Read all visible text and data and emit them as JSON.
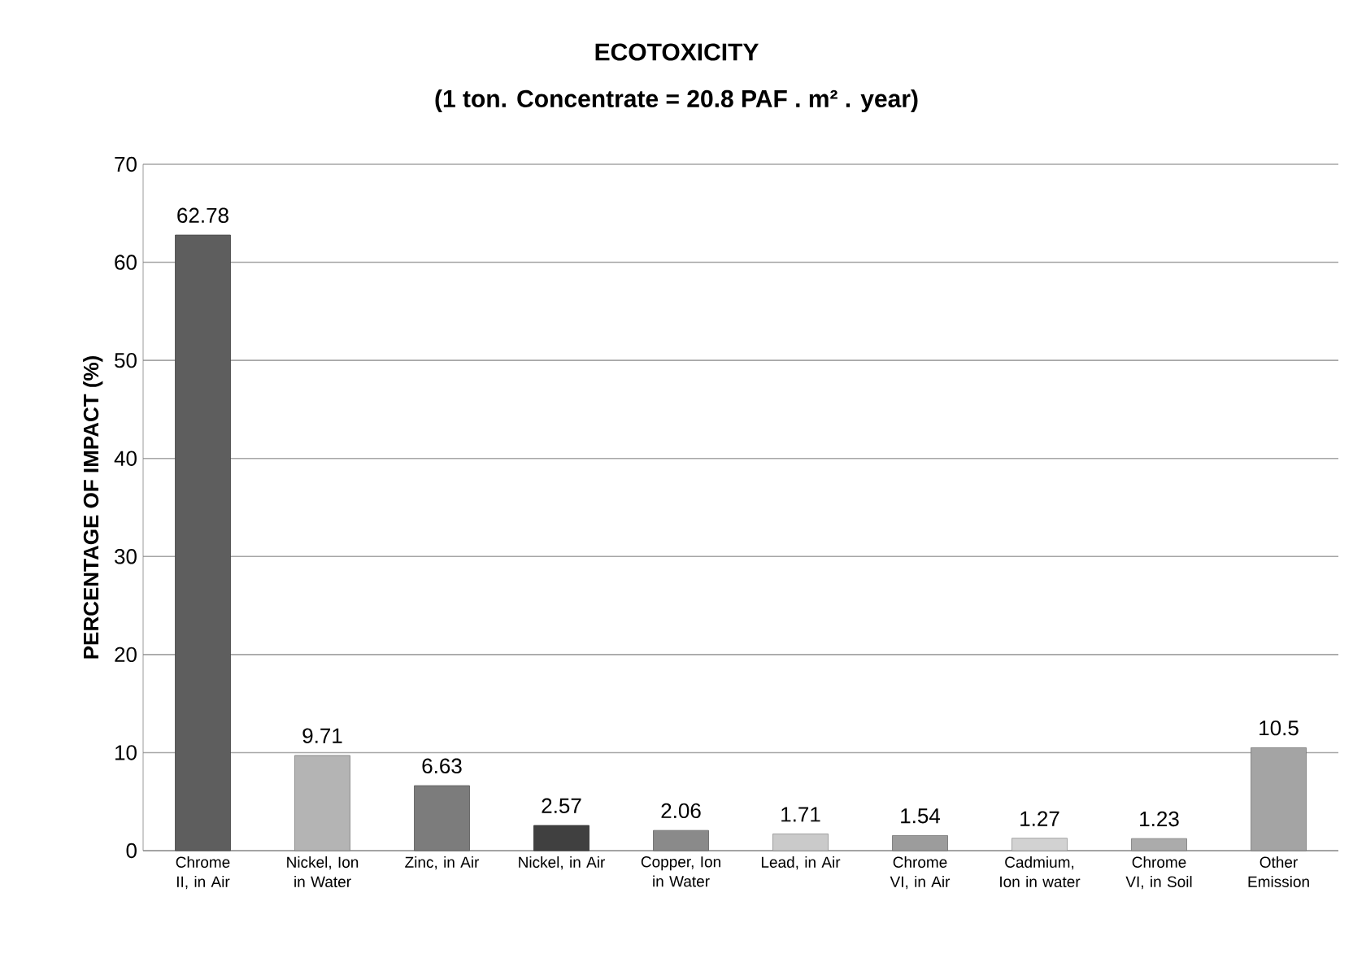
{
  "chart_data": {
    "type": "bar",
    "title": "ECOTOXICITY",
    "subtitle": "(1 ton. Concentrate = 20.8 PAF . m² . year)",
    "ylabel": "PERCENTAGE OF IMPACT (%)",
    "categories": [
      "Chrome II, in Air",
      "Nickel, Ion in Water",
      "Zinc, in Air",
      "Nickel, in Air",
      "Copper, Ion in Water",
      "Lead, in Air",
      "Chrome VI, in Air",
      "Cadmium, Ion in water",
      "Chrome VI, in Soil",
      "Other Emission"
    ],
    "values": [
      62.78,
      9.71,
      6.63,
      2.57,
      2.06,
      1.71,
      1.54,
      1.27,
      1.23,
      10.5
    ],
    "colors": [
      "#5e5e5e",
      "#b4b4b4",
      "#7c7c7c",
      "#404040",
      "#8a8a8a",
      "#cacaca",
      "#9c9c9c",
      "#d2d2d2",
      "#ababab",
      "#a4a4a4"
    ],
    "ylim": [
      0,
      70
    ],
    "yticks": [
      0,
      10,
      20,
      30,
      40,
      50,
      60,
      70
    ],
    "grid": "y",
    "data_labels": true
  }
}
